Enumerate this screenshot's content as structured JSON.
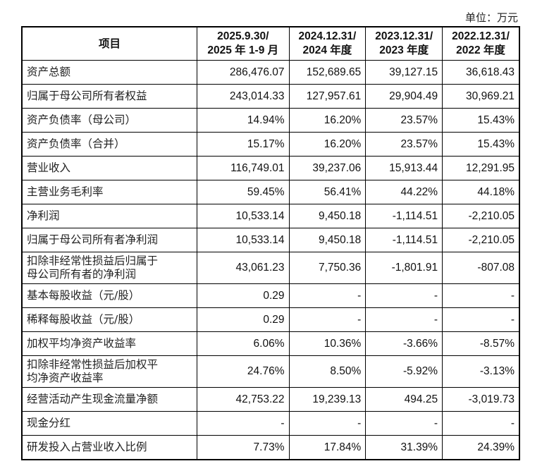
{
  "unit_label": "单位：万元",
  "table": {
    "headers": [
      {
        "line1": "项目",
        "line2": ""
      },
      {
        "line1": "2025.9.30/",
        "line2": "2025 年 1-9 月"
      },
      {
        "line1": "2024.12.31/",
        "line2": "2024 年度"
      },
      {
        "line1": "2023.12.31/",
        "line2": "2023 年度"
      },
      {
        "line1": "2022.12.31/",
        "line2": "2022 年度"
      }
    ],
    "rows": [
      {
        "label": "资产总额",
        "v": [
          "286,476.07",
          "152,689.65",
          "39,127.15",
          "36,618.43"
        ]
      },
      {
        "label": "归属于母公司所有者权益",
        "v": [
          "243,014.33",
          "127,957.61",
          "29,904.49",
          "30,969.21"
        ]
      },
      {
        "label": "资产负债率（母公司）",
        "v": [
          "14.94%",
          "16.20%",
          "23.57%",
          "15.43%"
        ]
      },
      {
        "label": "资产负债率（合并）",
        "v": [
          "15.17%",
          "16.20%",
          "23.57%",
          "15.43%"
        ]
      },
      {
        "label": "营业收入",
        "v": [
          "116,749.01",
          "39,237.06",
          "15,913.44",
          "12,291.95"
        ]
      },
      {
        "label": "主营业务毛利率",
        "v": [
          "59.45%",
          "56.41%",
          "44.22%",
          "44.18%"
        ]
      },
      {
        "label": "净利润",
        "v": [
          "10,533.14",
          "9,450.18",
          "-1,114.51",
          "-2,210.05"
        ]
      },
      {
        "label": "归属于母公司所有者净利润",
        "v": [
          "10,533.14",
          "9,450.18",
          "-1,114.51",
          "-2,210.05"
        ]
      },
      {
        "label": "扣除非经常性损益后归属于",
        "label2": "母公司所有者的净利润",
        "v": [
          "43,061.23",
          "7,750.36",
          "-1,801.91",
          "-807.08"
        ]
      },
      {
        "label": "基本每股收益（元/股）",
        "v": [
          "0.29",
          "-",
          "-",
          "-"
        ]
      },
      {
        "label": "稀释每股收益（元/股）",
        "v": [
          "0.29",
          "-",
          "-",
          "-"
        ]
      },
      {
        "label": "加权平均净资产收益率",
        "v": [
          "6.06%",
          "10.36%",
          "-3.66%",
          "-8.57%"
        ]
      },
      {
        "label": "扣除非经常性损益后加权平",
        "label2": "均净资产收益率",
        "v": [
          "24.76%",
          "8.50%",
          "-5.92%",
          "-3.13%"
        ]
      },
      {
        "label": "经营活动产生现金流量净额",
        "v": [
          "42,753.22",
          "19,239.13",
          "494.25",
          "-3,019.73"
        ]
      },
      {
        "label": "现金分红",
        "v": [
          "-",
          "-",
          "-",
          "-"
        ]
      },
      {
        "label": "研发投入占营业收入比例",
        "v": [
          "7.73%",
          "17.84%",
          "31.39%",
          "24.39%"
        ]
      }
    ]
  }
}
